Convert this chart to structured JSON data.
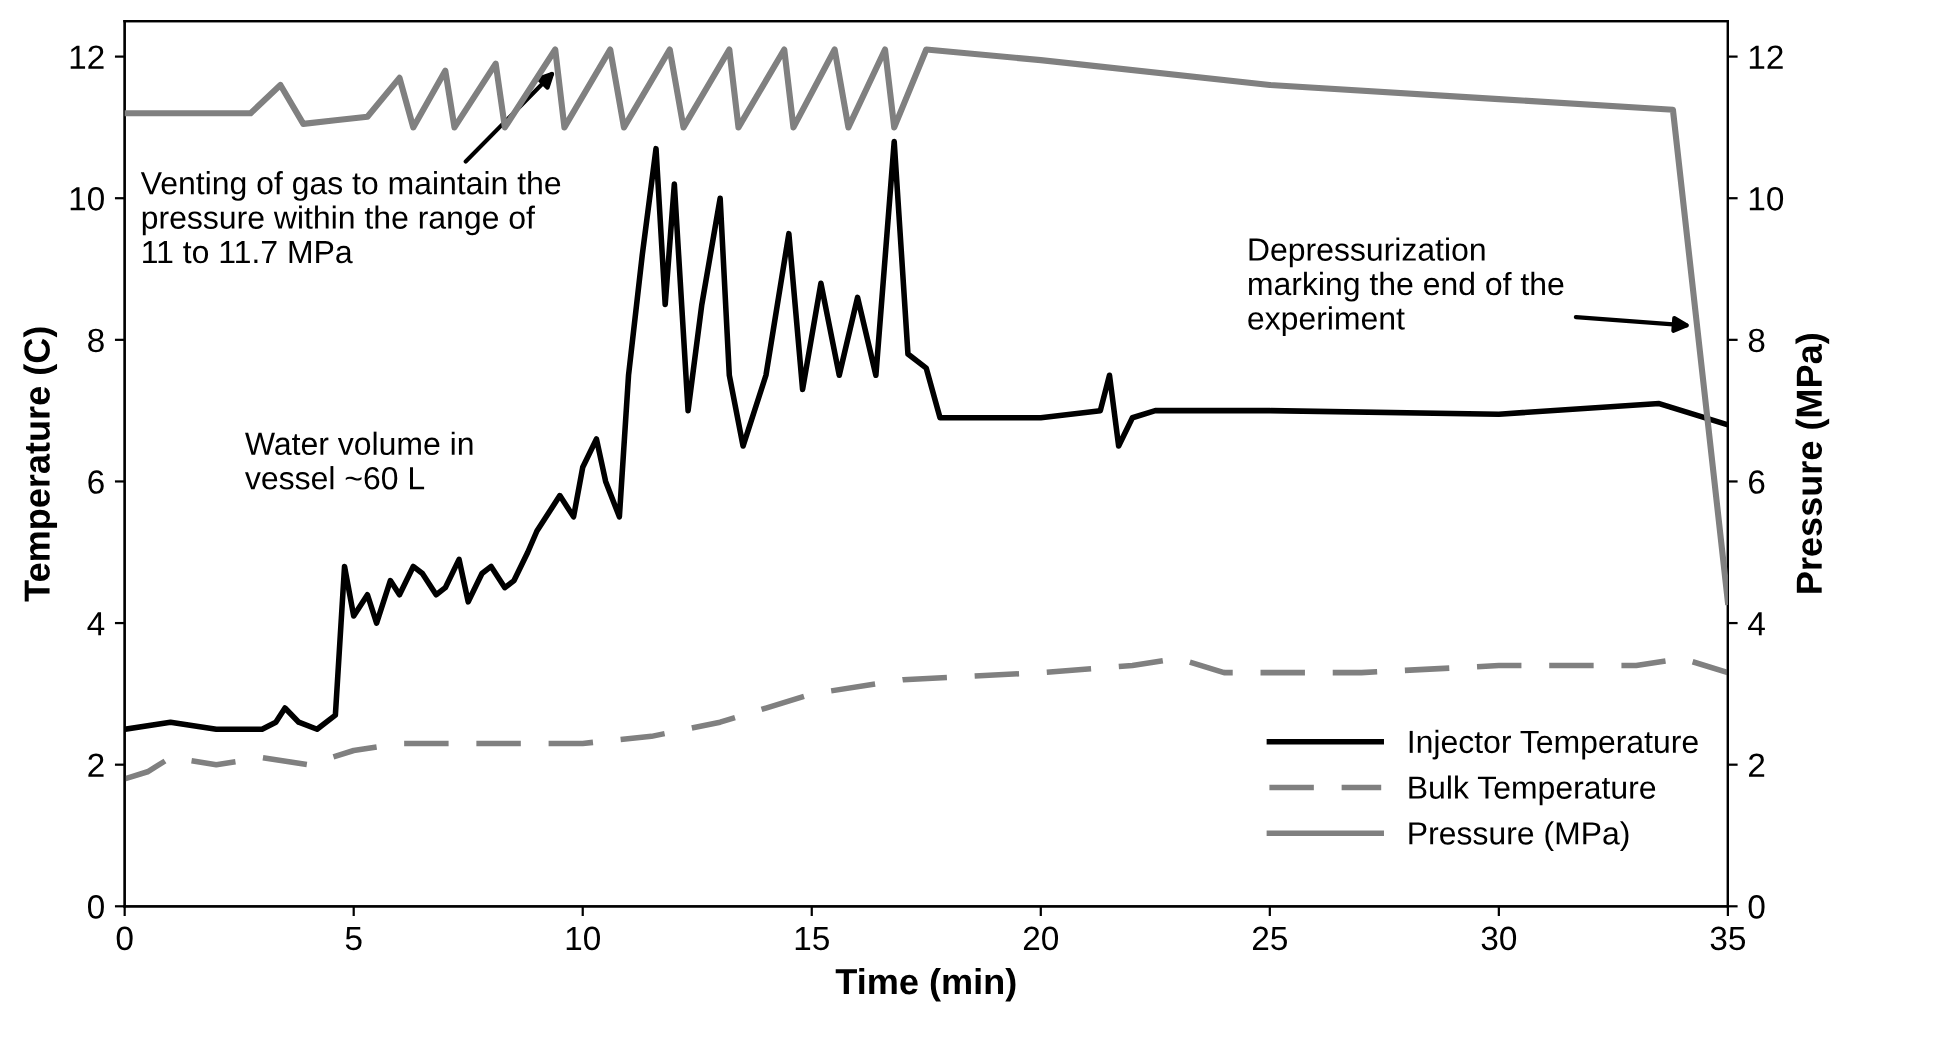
{
  "chart_data": {
    "type": "line",
    "xlabel": "Time (min)",
    "ylabel": "Temperature (C)",
    "y2label": "Pressure (MPa)",
    "xlim": [
      0,
      35
    ],
    "xticks": [
      0,
      5,
      10,
      15,
      20,
      25,
      30,
      35
    ],
    "ylim": [
      0,
      12.5
    ],
    "yticks": [
      0,
      2,
      4,
      6,
      8,
      10,
      12
    ],
    "y2lim": [
      0,
      12.5
    ],
    "y2ticks": [
      0,
      2,
      4,
      6,
      8,
      10,
      12
    ],
    "grid": false,
    "legend": "bottom right",
    "marker": "none",
    "series": [
      {
        "name": "Injector Temperature",
        "color": "#000000",
        "line_style": "solid",
        "x": [
          0,
          1,
          2,
          3,
          3.3,
          3.5,
          3.8,
          4.2,
          4.6,
          4.8,
          5.0,
          5.3,
          5.5,
          5.8,
          6.0,
          6.3,
          6.5,
          6.8,
          7.0,
          7.3,
          7.5,
          7.8,
          8.0,
          8.3,
          8.5,
          8.8,
          9.0,
          9.3,
          9.5,
          9.8,
          10.0,
          10.3,
          10.5,
          10.8,
          11.0,
          11.3,
          11.6,
          11.8,
          12.0,
          12.3,
          12.6,
          13.0,
          13.2,
          13.5,
          14.0,
          14.5,
          14.8,
          15.2,
          15.6,
          16.0,
          16.4,
          16.8,
          17.1,
          17.5,
          17.8,
          20,
          21.3,
          21.5,
          21.7,
          22,
          22.5,
          25,
          30,
          33.5,
          35
        ],
        "values": [
          2.5,
          2.6,
          2.5,
          2.5,
          2.6,
          2.8,
          2.6,
          2.5,
          2.7,
          4.8,
          4.1,
          4.4,
          4.0,
          4.6,
          4.4,
          4.8,
          4.7,
          4.4,
          4.5,
          4.9,
          4.3,
          4.7,
          4.8,
          4.5,
          4.6,
          5.0,
          5.3,
          5.6,
          5.8,
          5.5,
          6.2,
          6.6,
          6.0,
          5.5,
          7.5,
          9.2,
          10.7,
          8.5,
          10.2,
          7.0,
          8.5,
          10.0,
          7.5,
          6.5,
          7.5,
          9.5,
          7.3,
          8.8,
          7.5,
          8.6,
          7.5,
          10.8,
          7.8,
          7.6,
          6.9,
          6.9,
          7.0,
          7.5,
          6.5,
          6.9,
          7.0,
          7.0,
          6.95,
          7.1,
          6.8
        ]
      },
      {
        "name": "Bulk Temperature",
        "color": "#808080",
        "line_style": "dashed",
        "x": [
          0,
          0.5,
          1,
          2,
          3,
          4,
          5,
          6,
          8,
          10,
          11.5,
          13,
          14,
          15,
          17,
          20,
          22,
          23,
          24,
          27,
          30,
          33,
          34,
          35
        ],
        "values": [
          1.8,
          1.9,
          2.1,
          2.0,
          2.1,
          2.0,
          2.2,
          2.3,
          2.3,
          2.3,
          2.4,
          2.6,
          2.8,
          3.0,
          3.2,
          3.3,
          3.4,
          3.5,
          3.3,
          3.3,
          3.4,
          3.4,
          3.5,
          3.3
        ]
      },
      {
        "name": "Pressure (MPa)",
        "color": "#808080",
        "line_style": "solid",
        "axis": "y2",
        "x": [
          0,
          2.75,
          3.4,
          3.9,
          4.6,
          5.3,
          6.0,
          6.3,
          7.0,
          7.2,
          8.1,
          8.3,
          9.4,
          9.6,
          10.6,
          10.9,
          11.9,
          12.2,
          13.2,
          13.4,
          14.4,
          14.6,
          15.5,
          15.8,
          16.6,
          16.8,
          17.5,
          20,
          25,
          30,
          33.8,
          35
        ],
        "values": [
          11.2,
          11.2,
          11.6,
          11.05,
          11.1,
          11.15,
          11.7,
          11.0,
          11.8,
          11.0,
          11.9,
          11.0,
          12.1,
          11.0,
          12.1,
          11.0,
          12.1,
          11.0,
          12.1,
          11.0,
          12.1,
          11.0,
          12.1,
          11.0,
          12.1,
          11.0,
          12.1,
          11.95,
          11.6,
          11.4,
          11.25,
          4.3
        ]
      }
    ],
    "annotations": [
      {
        "text": "Venting of gas to maintain the\npressure within the range of\n11 to 11.7 MPa",
        "x": 9.4,
        "y": 11.8
      },
      "Water volume in\nvessel ~60 L",
      {
        "text": "Depressurization\nmarking the end of the\nexperiment",
        "x": 34.2,
        "y": 8.2
      }
    ]
  }
}
